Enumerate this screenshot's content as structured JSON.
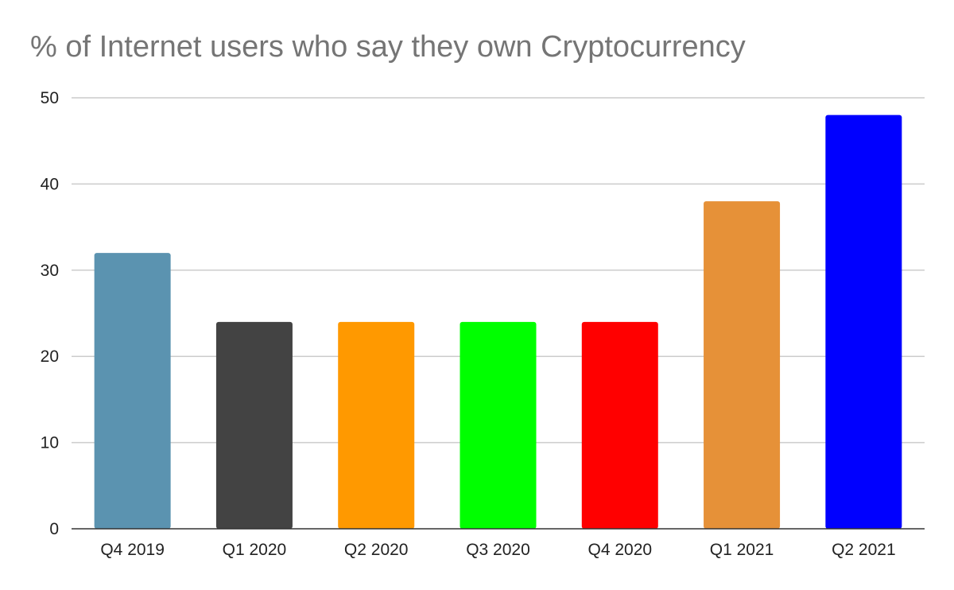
{
  "chart_data": {
    "type": "bar",
    "title": "% of Internet users who say they own Cryptocurrency",
    "xlabel": "",
    "ylabel": "",
    "categories": [
      "Q4 2019",
      "Q1 2020",
      "Q2 2020",
      "Q3 2020",
      "Q4 2020",
      "Q1 2021",
      "Q2 2021"
    ],
    "values": [
      32,
      24,
      24,
      24,
      24,
      38,
      48
    ],
    "colors": [
      "#5b93b0",
      "#434343",
      "#ff9900",
      "#00ff00",
      "#ff0000",
      "#e69138",
      "#0000ff"
    ],
    "ylim": [
      0,
      50
    ],
    "yticks": [
      0,
      10,
      20,
      30,
      40,
      50
    ],
    "grid": true,
    "legend": "none"
  }
}
